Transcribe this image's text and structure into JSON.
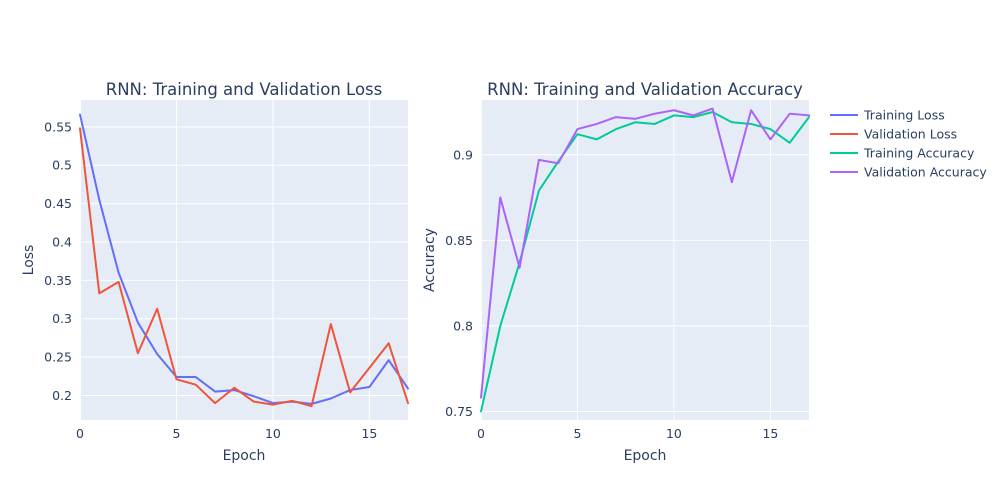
{
  "chart_data": [
    {
      "type": "line",
      "title": "RNN: Training and Validation Loss",
      "xlabel": "Epoch",
      "ylabel": "Loss",
      "xlim": [
        0,
        17
      ],
      "ylim": [
        0.168,
        0.585
      ],
      "x_ticks": [
        0,
        5,
        10,
        15
      ],
      "y_ticks": [
        0.2,
        0.25,
        0.3,
        0.35,
        0.4,
        0.45,
        0.5,
        0.55
      ],
      "y_tick_labels": [
        "0.2",
        "0.25",
        "0.3",
        "0.35",
        "0.4",
        "0.45",
        "0.5",
        "0.55"
      ],
      "grid": true,
      "x": [
        0,
        1,
        2,
        3,
        4,
        5,
        6,
        7,
        8,
        9,
        10,
        11,
        12,
        13,
        14,
        15,
        16,
        17
      ],
      "series": [
        {
          "name": "Training Loss",
          "color": "#636efa",
          "values": [
            0.566,
            0.455,
            0.36,
            0.295,
            0.254,
            0.224,
            0.224,
            0.205,
            0.207,
            0.199,
            0.19,
            0.192,
            0.189,
            0.196,
            0.207,
            0.211,
            0.246,
            0.209
          ]
        },
        {
          "name": "Validation Loss",
          "color": "#ef553b",
          "values": [
            0.548,
            0.333,
            0.348,
            0.255,
            0.313,
            0.221,
            0.214,
            0.19,
            0.21,
            0.192,
            0.188,
            0.193,
            0.186,
            0.293,
            0.204,
            0.236,
            0.268,
            0.19
          ]
        }
      ]
    },
    {
      "type": "line",
      "title": "RNN: Training and Validation Accuracy",
      "xlabel": "Epoch",
      "ylabel": "Accuracy",
      "xlim": [
        0,
        17
      ],
      "ylim": [
        0.745,
        0.932
      ],
      "x_ticks": [
        0,
        5,
        10,
        15
      ],
      "y_ticks": [
        0.75,
        0.8,
        0.85,
        0.9
      ],
      "y_tick_labels": [
        "0.75",
        "0.8",
        "0.85",
        "0.9"
      ],
      "grid": true,
      "x": [
        0,
        1,
        2,
        3,
        4,
        5,
        6,
        7,
        8,
        9,
        10,
        11,
        12,
        13,
        14,
        15,
        16,
        17
      ],
      "series": [
        {
          "name": "Training Accuracy",
          "color": "#00cc96",
          "values": [
            0.75,
            0.8,
            0.837,
            0.879,
            0.896,
            0.912,
            0.909,
            0.915,
            0.919,
            0.918,
            0.923,
            0.922,
            0.925,
            0.919,
            0.918,
            0.915,
            0.907,
            0.922
          ]
        },
        {
          "name": "Validation Accuracy",
          "color": "#ab63fa",
          "values": [
            0.758,
            0.875,
            0.834,
            0.897,
            0.895,
            0.915,
            0.918,
            0.922,
            0.921,
            0.924,
            0.926,
            0.923,
            0.927,
            0.884,
            0.926,
            0.909,
            0.924,
            0.923
          ]
        }
      ]
    }
  ],
  "legend": {
    "placement": "right",
    "items": [
      {
        "label": "Training Loss",
        "color": "#636efa"
      },
      {
        "label": "Validation Loss",
        "color": "#ef553b"
      },
      {
        "label": "Training Accuracy",
        "color": "#00cc96"
      },
      {
        "label": "Validation Accuracy",
        "color": "#ab63fa"
      }
    ]
  }
}
